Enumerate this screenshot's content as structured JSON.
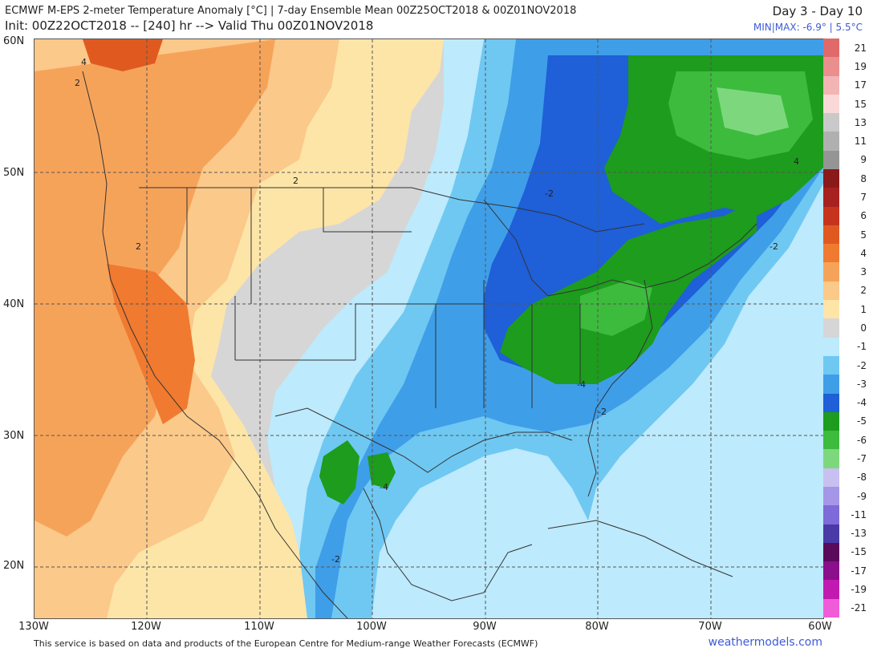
{
  "header": {
    "title_line1": "ECMWF M-EPS 2-meter Temperature Anomaly [°C] | 7-day Ensemble Mean 00Z25OCT2018 & 00Z01NOV2018",
    "title_line2": "Init: 00Z22OCT2018 -- [240] hr --> Valid Thu 00Z01NOV2018",
    "range": "Day 3 - Day 10",
    "minmax": "MIN|MAX: -6.9° | 5.5°C"
  },
  "axes": {
    "lat_labels": [
      "60N",
      "50N",
      "40N",
      "30N",
      "20N"
    ],
    "lon_labels": [
      "130W",
      "120W",
      "110W",
      "100W",
      "90W",
      "80W",
      "70W",
      "60W"
    ]
  },
  "contour_labels": [
    "4",
    "2",
    "2",
    "2",
    "-2",
    "-4",
    "-2",
    "-4",
    "-2",
    "-2",
    "4"
  ],
  "colorbar": {
    "labels": [
      "21",
      "19",
      "17",
      "15",
      "13",
      "11",
      "9",
      "8",
      "7",
      "6",
      "5",
      "4",
      "3",
      "2",
      "1",
      "0",
      "-1",
      "-2",
      "-3",
      "-4",
      "-5",
      "-6",
      "-7",
      "-8",
      "-9",
      "-11",
      "-13",
      "-15",
      "-17",
      "-19",
      "-21"
    ],
    "colors": [
      "#e06a6a",
      "#ea8e8e",
      "#f3b4b4",
      "#fad8d8",
      "#c9c9c9",
      "#b0b0b0",
      "#959595",
      "#8a1a1a",
      "#a82121",
      "#c6341e",
      "#e05a20",
      "#f07a30",
      "#f6a35a",
      "#fbc98a",
      "#fde5a8",
      "#d6d6d6",
      "#bdeafc",
      "#6fc8f2",
      "#3f9ee8",
      "#1f5fd8",
      "#1d9c1d",
      "#3dbb3d",
      "#7dd87d",
      "#c7c0f0",
      "#a596e8",
      "#7e6ad8",
      "#4a3aa8",
      "#5a0a5a",
      "#8a0f8a",
      "#c21ab0",
      "#f05cd8"
    ]
  },
  "footer": {
    "credit": "This service is based on data and products of the European Centre for Medium-range Weather Forecasts (ECMWF)",
    "brand": "weathermodels.com"
  }
}
